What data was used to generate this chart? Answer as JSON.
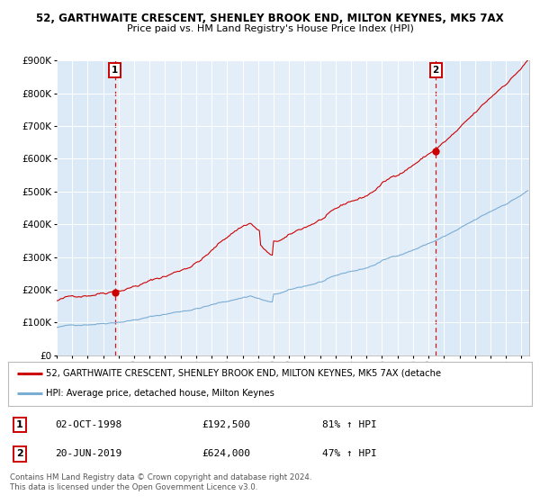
{
  "title_line1": "52, GARTHWAITE CRESCENT, SHENLEY BROOK END, MILTON KEYNES, MK5 7AX",
  "title_line2": "Price paid vs. HM Land Registry's House Price Index (HPI)",
  "bg_color": "#dce9f7",
  "fig_bg_color": "#ffffff",
  "red_line_color": "#cc0000",
  "blue_line_color": "#7aadd4",
  "sale1_year": 1998.75,
  "sale1_price": 192500,
  "sale2_year": 2019.47,
  "sale2_price": 624000,
  "ylim": [
    0,
    900000
  ],
  "yticks": [
    0,
    100000,
    200000,
    300000,
    400000,
    500000,
    600000,
    700000,
    800000,
    900000
  ],
  "xlim_start": 1995.0,
  "xlim_end": 2025.5,
  "legend_red": "52, GARTHWAITE CRESCENT, SHENLEY BROOK END, MILTON KEYNES, MK5 7AX (detache",
  "legend_blue": "HPI: Average price, detached house, Milton Keynes",
  "table_row1": [
    "1",
    "02-OCT-1998",
    "£192,500",
    "81% ↑ HPI"
  ],
  "table_row2": [
    "2",
    "20-JUN-2019",
    "£624,000",
    "47% ↑ HPI"
  ],
  "footnote": "Contains HM Land Registry data © Crown copyright and database right 2024.\nThis data is licensed under the Open Government Licence v3.0."
}
